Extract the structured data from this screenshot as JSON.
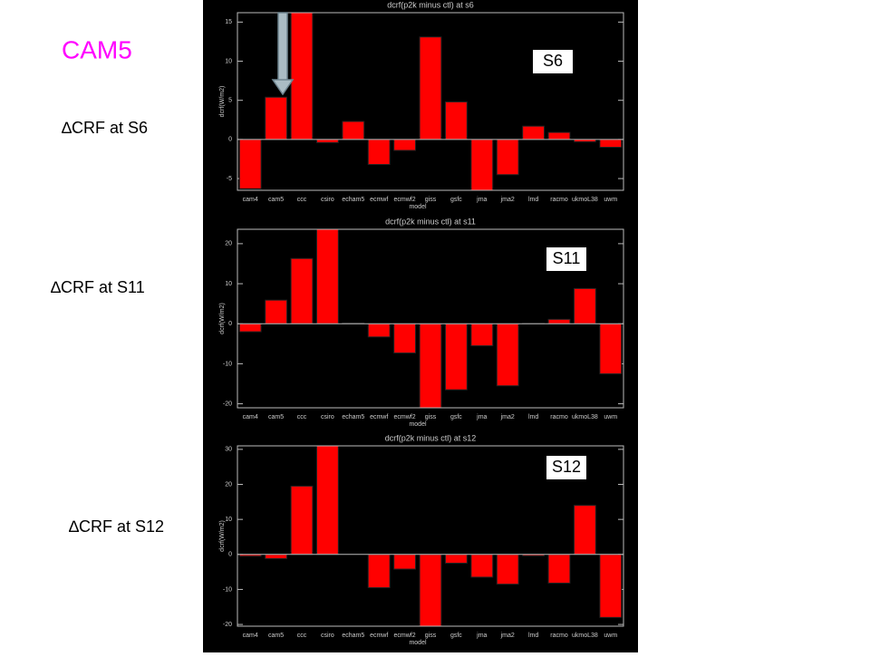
{
  "title": "CAM5",
  "chart_data": [
    {
      "type": "bar",
      "title": "dcrf(p2k minus ctl) at s6",
      "xlabel": "model",
      "ylabel": "dcrf(W/m2)",
      "annotation": "S6",
      "caption": "∆CRF at S6",
      "categories": [
        "cam4",
        "cam5",
        "ccc",
        "csiro",
        "echam5",
        "ecmwf",
        "ecmwf2",
        "giss",
        "gsfc",
        "jma",
        "jma2",
        "lmd",
        "racmo",
        "ukmoL38",
        "uwm"
      ],
      "values": [
        -6.3,
        5.4,
        16.2,
        -0.4,
        2.3,
        -3.2,
        -1.4,
        13.1,
        4.8,
        -6.5,
        -4.5,
        1.7,
        0.9,
        -0.3,
        -1.0
      ],
      "color": "#ff0000",
      "ylim": [
        -6.5,
        16.2
      ],
      "yticks": [
        -5,
        0,
        5,
        10,
        15
      ]
    },
    {
      "type": "bar",
      "title": "dcrf(p2k minus ctl) at s11",
      "xlabel": "model",
      "ylabel": "dcrf(W/m2)",
      "annotation": "S11",
      "caption": "∆CRF at S11",
      "categories": [
        "cam4",
        "cam5",
        "ccc",
        "csiro",
        "echam5",
        "ecmwf",
        "ecmwf2",
        "giss",
        "gsfc",
        "jma",
        "jma2",
        "lmd",
        "racmo",
        "ukmoL38",
        "uwm"
      ],
      "values": [
        -2.0,
        5.9,
        16.3,
        23.6,
        0.2,
        -3.3,
        -7.3,
        -21.0,
        -16.5,
        -5.5,
        -15.5,
        0.1,
        1.1,
        8.8,
        -12.5
      ],
      "color": "#ff0000",
      "ylim": [
        -21.0,
        23.6
      ],
      "yticks": [
        -20,
        -10,
        0,
        10,
        20
      ]
    },
    {
      "type": "bar",
      "title": "dcrf(p2k minus ctl) at s12",
      "xlabel": "model",
      "ylabel": "dcrf(W/m2)",
      "annotation": "S12",
      "caption": "∆CRF at S12",
      "categories": [
        "cam4",
        "cam5",
        "ccc",
        "csiro",
        "echam5",
        "ecmwf",
        "ecmwf2",
        "giss",
        "gsfc",
        "jma",
        "jma2",
        "lmd",
        "racmo",
        "ukmoL38",
        "uwm"
      ],
      "values": [
        -0.5,
        -1.2,
        19.5,
        31.0,
        0.0,
        -9.5,
        -4.2,
        -20.5,
        -2.5,
        -6.5,
        -8.5,
        -0.4,
        -8.2,
        14.0,
        -18.0
      ],
      "color": "#ff0000",
      "ylim": [
        -20.5,
        31.0
      ],
      "yticks": [
        -20,
        -10,
        0,
        10,
        20,
        30
      ]
    }
  ]
}
